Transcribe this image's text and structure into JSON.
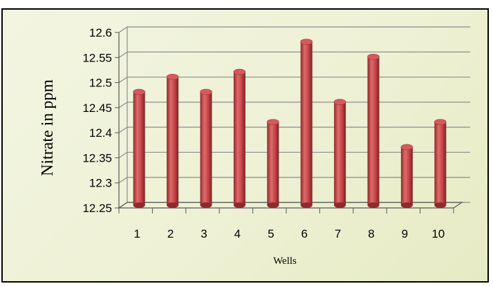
{
  "chart_data": {
    "type": "bar",
    "categories": [
      "1",
      "2",
      "3",
      "4",
      "5",
      "6",
      "7",
      "8",
      "9",
      "10"
    ],
    "series": [
      {
        "values": [
          12.48,
          12.51,
          12.48,
          12.52,
          12.42,
          12.58,
          12.46,
          12.55,
          12.37,
          12.42
        ]
      }
    ],
    "ylim": [
      12.25,
      12.6
    ],
    "yticks": [
      "12.6",
      "12.55",
      "12.5",
      "12.45",
      "12.4",
      "12.35",
      "12.3",
      "12.25"
    ],
    "xlabel": "Wells",
    "ylabel": "Nitrate   in ppm",
    "grid": true,
    "legend": "none",
    "style": "3d-cylinder",
    "colors": {
      "bar": "#c8474a",
      "background": "#eef1d4",
      "grid": "#8c8c8c"
    }
  }
}
